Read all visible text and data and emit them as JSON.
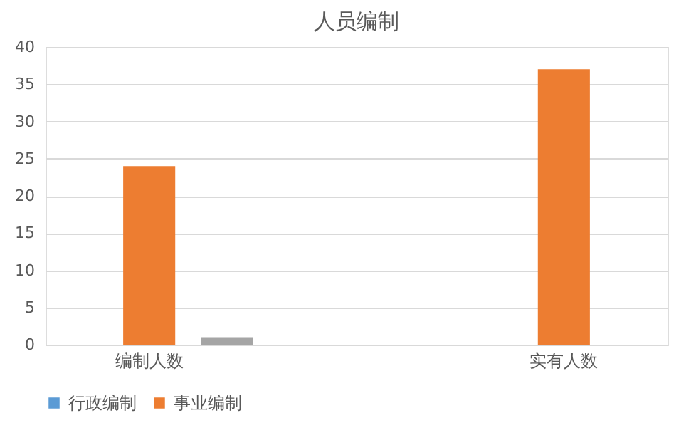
{
  "chart_data": {
    "type": "bar",
    "title": "人员编制",
    "categories": [
      "编制人数",
      "实有人数"
    ],
    "series": [
      {
        "name": "行政编制",
        "color": "#5b9bd5",
        "values": [
          0,
          0
        ]
      },
      {
        "name": "事业编制",
        "color": "#ed7d31",
        "values": [
          24,
          37
        ]
      },
      {
        "color": "#a5a5a5",
        "values": [
          1,
          0
        ]
      }
    ],
    "ylim": [
      0,
      40
    ],
    "yticks": [
      0,
      5,
      10,
      15,
      20,
      25,
      30,
      35,
      40
    ],
    "grid": "y",
    "legend": "bottom"
  }
}
